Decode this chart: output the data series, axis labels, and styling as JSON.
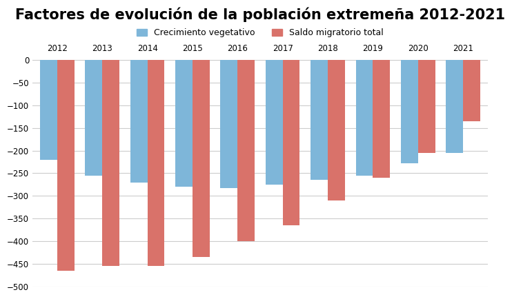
{
  "title": "Factores de evolución de la población extremeña 2012-2021",
  "years": [
    "2012",
    "2013",
    "2014",
    "2015",
    "2016",
    "2017",
    "2018",
    "2019",
    "2020",
    "2021"
  ],
  "crecimiento_vegetativo": [
    -220,
    -255,
    -270,
    -280,
    -283,
    -275,
    -265,
    -255,
    -228,
    -205
  ],
  "saldo_migratorio": [
    -465,
    -455,
    -455,
    -435,
    -400,
    -365,
    -310,
    -260,
    -205,
    -135
  ],
  "legend_labels": [
    "Crecimiento vegetativo",
    "Saldo migratorio total"
  ],
  "bar_color_vegetativo": "#7eb6d9",
  "bar_color_migratorio": "#d9726a",
  "ylim": [
    -500,
    10
  ],
  "yticks": [
    0,
    -50,
    -100,
    -150,
    -200,
    -250,
    -300,
    -350,
    -400,
    -450,
    -500
  ],
  "background_color": "#ffffff",
  "plot_bg_color": "#ffffff",
  "grid_color": "#cccccc",
  "title_fontsize": 15,
  "bar_width": 0.38
}
